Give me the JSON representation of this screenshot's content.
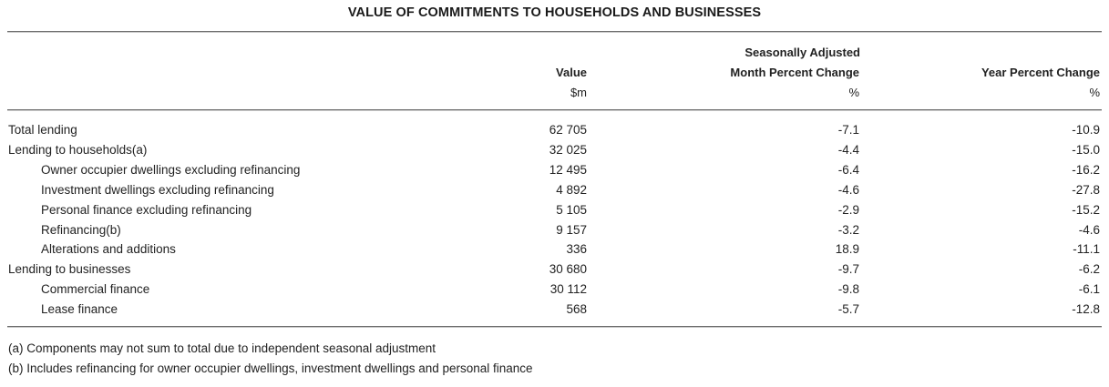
{
  "title": "VALUE OF COMMITMENTS TO HOUSEHOLDS AND BUSINESSES",
  "headers": {
    "value": "Value",
    "value_unit": "$m",
    "month_line1": "Seasonally Adjusted",
    "month_line2": "Month Percent Change",
    "month_unit": "%",
    "year": "Year Percent Change",
    "year_unit": "%"
  },
  "rows": [
    {
      "label": "Total lending",
      "indent": 0,
      "value": "62 705",
      "month": "-7.1",
      "year": "-10.9"
    },
    {
      "label": "Lending to households(a)",
      "indent": 0,
      "value": "32 025",
      "month": "-4.4",
      "year": "-15.0"
    },
    {
      "label": "Owner occupier dwellings excluding refinancing",
      "indent": 1,
      "value": "12 495",
      "month": "-6.4",
      "year": "-16.2"
    },
    {
      "label": "Investment dwellings excluding refinancing",
      "indent": 1,
      "value": "4 892",
      "month": "-4.6",
      "year": "-27.8"
    },
    {
      "label": "Personal finance excluding refinancing",
      "indent": 1,
      "value": "5 105",
      "month": "-2.9",
      "year": "-15.2"
    },
    {
      "label": "Refinancing(b)",
      "indent": 1,
      "value": "9 157",
      "month": "-3.2",
      "year": "-4.6"
    },
    {
      "label": "Alterations and additions",
      "indent": 1,
      "value": "336",
      "month": "18.9",
      "year": "-11.1"
    },
    {
      "label": "Lending to businesses",
      "indent": 0,
      "value": "30 680",
      "month": "-9.7",
      "year": "-6.2"
    },
    {
      "label": "Commercial finance",
      "indent": 1,
      "value": "30 112",
      "month": "-9.8",
      "year": "-6.1"
    },
    {
      "label": "Lease finance",
      "indent": 1,
      "value": "568",
      "month": "-5.7",
      "year": "-12.8"
    }
  ],
  "footnotes": [
    "(a) Components may not sum to total due to independent seasonal adjustment",
    "(b) Includes refinancing for owner occupier dwellings, investment dwellings and personal finance"
  ]
}
